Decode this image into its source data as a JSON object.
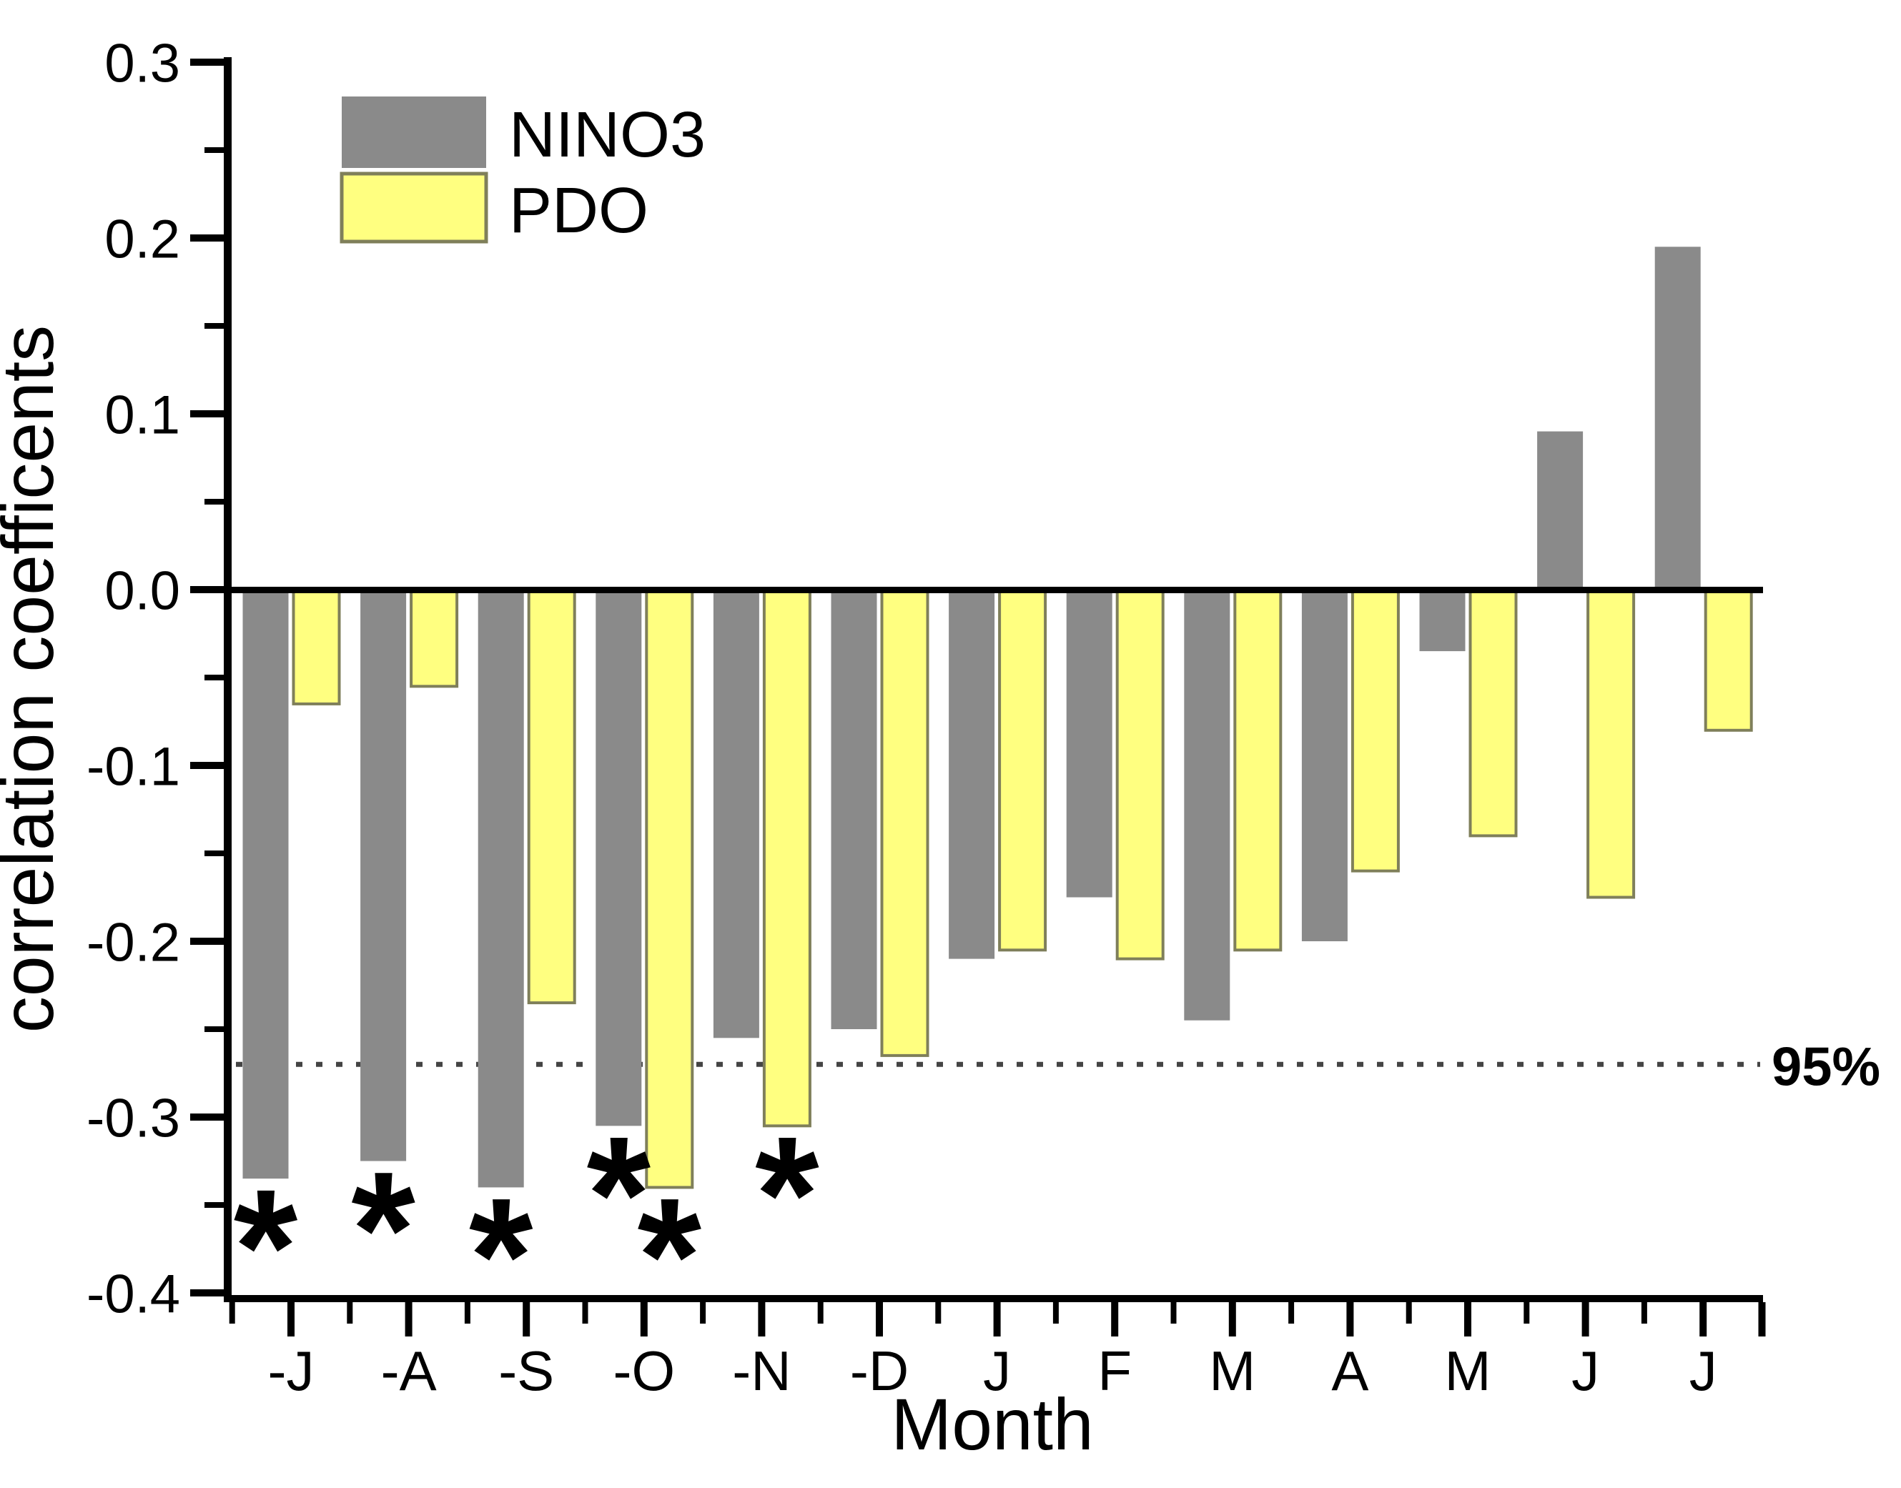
{
  "figure": {
    "background": "#ffffff"
  },
  "chart_data": {
    "type": "bar",
    "title": "",
    "xlabel": "Month",
    "ylabel": "correlation coefficents",
    "categories": [
      "-J",
      "-A",
      "-S",
      "-O",
      "-N",
      "-D",
      "J",
      "F",
      "M",
      "A",
      "M",
      "J",
      "J"
    ],
    "series": [
      {
        "name": "NINO3",
        "color": "#8a8a8a",
        "values": [
          -0.335,
          -0.325,
          -0.34,
          -0.305,
          -0.255,
          -0.25,
          -0.21,
          -0.175,
          -0.245,
          -0.2,
          -0.035,
          0.09,
          0.195
        ],
        "starred_indices": [
          0,
          1,
          2,
          3
        ]
      },
      {
        "name": "PDO",
        "color": "#ffff80",
        "border_color": "#7f7f5a",
        "values": [
          -0.065,
          -0.055,
          -0.235,
          -0.34,
          -0.305,
          -0.265,
          -0.205,
          -0.21,
          -0.205,
          -0.16,
          -0.14,
          -0.175,
          -0.08
        ],
        "starred_indices": [
          3,
          4
        ]
      }
    ],
    "ylim": [
      -0.4,
      0.3
    ],
    "y_major_step": 0.1,
    "y_minor_step": 0.05,
    "y_tick_labels": [
      "0.3",
      "0.2",
      "0.1",
      "0.0",
      "-0.1",
      "-0.2",
      "-0.3",
      "-0.4"
    ],
    "significance_line": {
      "value": -0.27,
      "label": "95%",
      "style": "dotted",
      "color": "#444444"
    },
    "significance_marker": "*",
    "legend": {
      "position": "top-left",
      "entries": [
        "NINO3",
        "PDO"
      ]
    },
    "grid": false,
    "axis_color": "#000000",
    "text_color": "#000000"
  }
}
